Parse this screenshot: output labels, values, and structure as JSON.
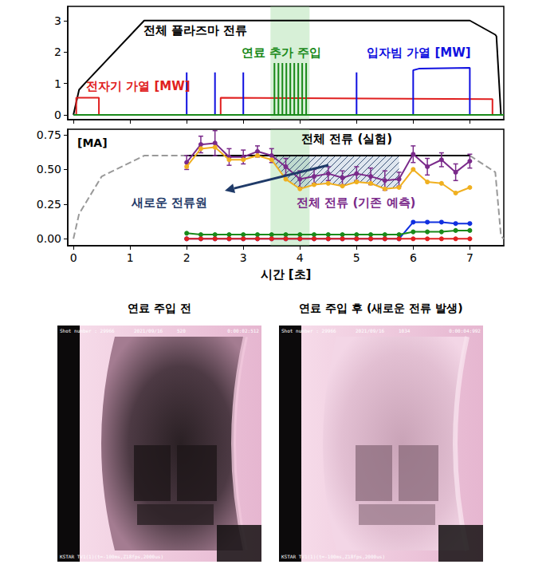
{
  "chart_data": [
    {
      "type": "line",
      "xlim": [
        -0.1,
        7.6
      ],
      "xticks": [
        0,
        1,
        2,
        3,
        4,
        5,
        6,
        7
      ],
      "ylim": [
        -0.15,
        3.45
      ],
      "yticks": [
        0,
        1,
        2,
        3
      ],
      "tick_labels": "y",
      "grid": false,
      "fuel_window": [
        3.48,
        4.17
      ],
      "series": [
        {
          "name": "전체 플라즈마 전류",
          "color": "#000000",
          "x": [
            0,
            0.1,
            0.2,
            1.25,
            7.0,
            7.45,
            7.47,
            7.55,
            7.6
          ],
          "values": [
            0,
            0.8,
            1.0,
            3.0,
            3.0,
            2.55,
            2.5,
            0,
            0
          ]
        },
        {
          "name": "전자기 가열 [MW]",
          "color": "#e02020",
          "x": [
            0,
            0.05,
            0.05,
            0.45,
            0.45,
            2.6,
            2.6,
            7.4,
            7.4,
            7.6
          ],
          "values": [
            0,
            0,
            0.55,
            0.55,
            0,
            0,
            0.55,
            0.5,
            0,
            0
          ]
        },
        {
          "name": "입자빔 가열 [MW]",
          "color": "#1010e0",
          "x": [
            0,
            2.0,
            2.0,
            2.0,
            2.5,
            2.5,
            2.5,
            3.0,
            3.0,
            3.0,
            5.0,
            5.0,
            5.0,
            6.0,
            6.0,
            6.1,
            7.0,
            7.0,
            7.6
          ],
          "values": [
            0,
            0,
            1.35,
            0,
            0,
            1.35,
            0,
            0,
            1.35,
            0,
            0,
            1.35,
            0,
            0,
            1.42,
            1.47,
            1.5,
            0,
            0
          ]
        },
        {
          "name": "연료 추가 주입",
          "color": "#1a8a1a",
          "x": [
            0,
            3.55,
            3.55,
            3.55,
            3.62,
            3.62,
            3.62,
            3.69,
            3.69,
            3.69,
            3.76,
            3.76,
            3.76,
            3.83,
            3.83,
            3.83,
            3.9,
            3.9,
            3.9,
            3.97,
            3.97,
            3.97,
            4.04,
            4.04,
            4.04,
            4.11,
            4.11,
            4.11,
            7.6
          ],
          "values": [
            0,
            0,
            1.65,
            0,
            0,
            1.65,
            0,
            0,
            1.65,
            0,
            0,
            1.65,
            0,
            0,
            1.65,
            0,
            0,
            1.65,
            0,
            0,
            1.65,
            0,
            0,
            1.65,
            0,
            0,
            1.65,
            0,
            0
          ]
        }
      ]
    },
    {
      "type": "line",
      "xlabel": "시간 [초]",
      "ylabel": "[MA]",
      "xlim": [
        -0.1,
        7.6
      ],
      "xticks": [
        0,
        1,
        2,
        3,
        4,
        5,
        6,
        7
      ],
      "ylim": [
        -0.05,
        0.79
      ],
      "yticks": [
        {
          "value": 0,
          "label": "0.00"
        },
        {
          "value": 0.25,
          "label": "0.25"
        },
        {
          "value": 0.5,
          "label": "0.50"
        },
        {
          "value": 0.75,
          "label": "0.75"
        }
      ],
      "grid": false,
      "fuel_window": [
        3.48,
        4.17
      ],
      "new_current": {
        "label": "새로운 전류원",
        "x_range": [
          3.5,
          5.75
        ]
      },
      "series": [
        {
          "color": "#999999",
          "line_style": "dashed",
          "x": [
            0,
            0.1,
            0.5,
            1.25,
            2.0,
            4.5,
            7.0,
            7.45,
            7.55,
            7.6
          ],
          "values": [
            0,
            0.18,
            0.45,
            0.6,
            0.6,
            null,
            0.6,
            0.48,
            0.02,
            0
          ]
        },
        {
          "name": "전체 전류 (실험)",
          "color": "#000000",
          "x": [
            2.0,
            7.0
          ],
          "values": [
            0.6,
            0.6
          ]
        },
        {
          "name": "전체 전류 (기존 예측)",
          "color": "#7a2a8a",
          "marker": "circle",
          "x": [
            2.0,
            2.25,
            2.5,
            2.75,
            3.0,
            3.25,
            3.5,
            3.75,
            4.0,
            4.25,
            4.5,
            4.75,
            5.0,
            5.25,
            5.5,
            5.75,
            6.0,
            6.25,
            6.5,
            6.75,
            7.0
          ],
          "values": [
            0.55,
            0.68,
            0.69,
            0.59,
            0.59,
            0.63,
            0.6,
            0.52,
            0.43,
            0.45,
            0.47,
            0.44,
            0.47,
            0.45,
            0.42,
            0.43,
            0.61,
            0.52,
            0.57,
            0.48,
            0.56
          ],
          "errors": [
            0.05,
            0.06,
            0.09,
            0.06,
            0.05,
            0.04,
            0.05,
            0.06,
            0.06,
            0.05,
            0.05,
            0.05,
            0.05,
            0.06,
            0.07,
            0.05,
            0.06,
            0.06,
            0.05,
            0.06,
            0.05
          ]
        },
        {
          "color": "#f0b020",
          "marker": "circle",
          "x": [
            2.0,
            2.25,
            2.5,
            2.75,
            3.0,
            3.25,
            3.5,
            3.75,
            4.0,
            4.25,
            4.5,
            4.75,
            5.0,
            5.25,
            5.5,
            5.75,
            6.0,
            6.25,
            6.5,
            6.75,
            7.0
          ],
          "values": [
            0.52,
            0.65,
            0.66,
            0.57,
            0.57,
            0.6,
            0.57,
            0.43,
            0.36,
            0.39,
            0.4,
            0.38,
            0.41,
            0.4,
            0.36,
            0.37,
            0.5,
            0.41,
            0.4,
            0.33,
            0.37
          ]
        },
        {
          "color": "#1030e0",
          "marker": "circle",
          "x": [
            2.0,
            2.25,
            2.5,
            2.75,
            3.0,
            3.25,
            3.5,
            3.75,
            4.0,
            4.25,
            4.5,
            4.75,
            5.0,
            5.25,
            5.5,
            5.75,
            6.0,
            6.25,
            6.5,
            6.75,
            7.0
          ],
          "values": [
            0,
            0,
            0,
            0,
            0,
            0,
            0,
            0,
            0,
            0,
            0,
            0,
            0,
            0,
            0,
            0,
            0.12,
            0.12,
            0.12,
            0.11,
            0.11
          ]
        },
        {
          "color": "#1a8a1a",
          "marker": "circle",
          "x": [
            2.0,
            2.25,
            2.5,
            2.75,
            3.0,
            3.25,
            3.5,
            3.75,
            4.0,
            4.25,
            4.5,
            4.75,
            5.0,
            5.25,
            5.5,
            5.75,
            6.0,
            6.25,
            6.5,
            6.75,
            7.0
          ],
          "values": [
            0.04,
            0.03,
            0.03,
            0.03,
            0.03,
            0.03,
            0.03,
            0.03,
            0.03,
            0.03,
            0.03,
            0.03,
            0.03,
            0.03,
            0.03,
            0.03,
            0.05,
            0.05,
            0.05,
            0.06,
            0.06
          ]
        },
        {
          "color": "#e02020",
          "marker": "circle",
          "x": [
            2.0,
            2.25,
            2.5,
            2.75,
            3.0,
            3.25,
            3.5,
            3.75,
            4.0,
            4.25,
            4.5,
            4.75,
            5.0,
            5.25,
            5.5,
            5.75,
            6.0,
            6.25,
            6.5,
            6.75,
            7.0
          ],
          "values": [
            0,
            0,
            0,
            0,
            0,
            0,
            0,
            0,
            0,
            0,
            0,
            0,
            0,
            0,
            0,
            0,
            0,
            0,
            0,
            0,
            0
          ]
        }
      ]
    }
  ],
  "images": [
    {
      "title": "연료 주입 전",
      "shot": "Shot number : 29966",
      "date": "2021/09/16",
      "frame": "520",
      "time": "0:00:02:512",
      "camera": "KSTAR TV1(1)(t=-100ms,Z18fps,2000us)"
    },
    {
      "title": "연료 주입 후 (새로운 전류 발생)",
      "shot": "Shot number : 29966",
      "date": "2021/09/16",
      "frame": "1034",
      "time": "0:00:04:992",
      "camera": "KSTAR TV1(1)(t=-100ms,Z18fps,2000us)"
    }
  ]
}
